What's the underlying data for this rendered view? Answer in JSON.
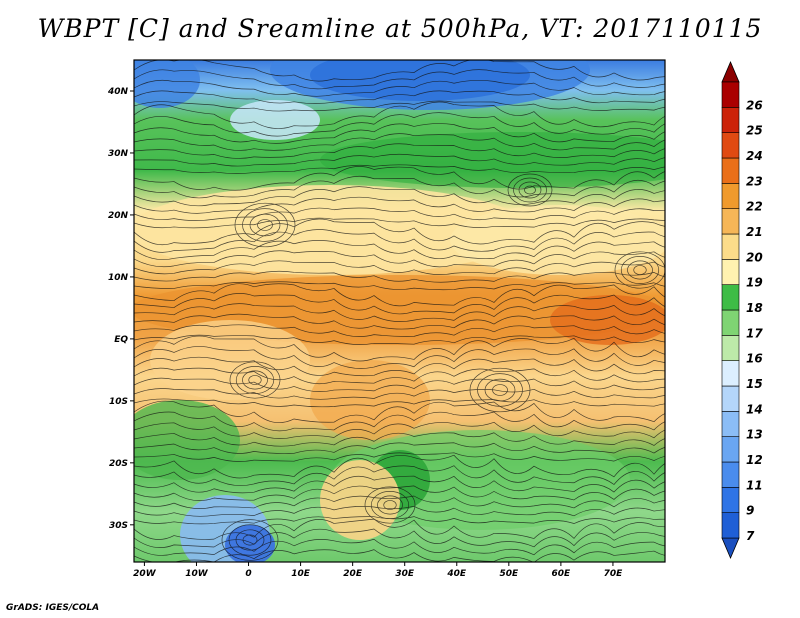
{
  "title": "WBPT [C] and Sreamline at 500hPa, VT: 2017110115",
  "footer": "GrADS: IGES/COLA",
  "map": {
    "lat_labels": [
      "40N",
      "30N",
      "20N",
      "10N",
      "EQ",
      "10S",
      "20S",
      "30S"
    ],
    "lat_values": [
      40,
      30,
      20,
      10,
      0,
      -10,
      -20,
      -30
    ],
    "lon_labels": [
      "20W",
      "10W",
      "0",
      "10E",
      "20E",
      "30E",
      "40E",
      "50E",
      "60E",
      "70E"
    ],
    "lon_values": [
      -20,
      -10,
      0,
      10,
      20,
      30,
      40,
      50,
      60,
      70
    ],
    "lon_range": [
      -22,
      80
    ],
    "lat_range": [
      -36,
      45
    ]
  },
  "colorbar": {
    "labels": [
      "7",
      "9",
      "11",
      "12",
      "13",
      "14",
      "15",
      "16",
      "17",
      "18",
      "19",
      "20",
      "21",
      "22",
      "23",
      "24",
      "25",
      "26"
    ],
    "colors": [
      "#1f5fd6",
      "#2f74e6",
      "#4a8ced",
      "#6aa6f2",
      "#8bbdf6",
      "#b4d6fa",
      "#dcefff",
      "#bdeaa9",
      "#7fd473",
      "#3ebc46",
      "#fff2b0",
      "#fcdc8a",
      "#f6b657",
      "#f09a2d",
      "#ea6f19",
      "#e04a12",
      "#cc2309",
      "#aa0000"
    ],
    "upper_color": "#8b0000",
    "lower_color": "#1a4fbf"
  }
}
